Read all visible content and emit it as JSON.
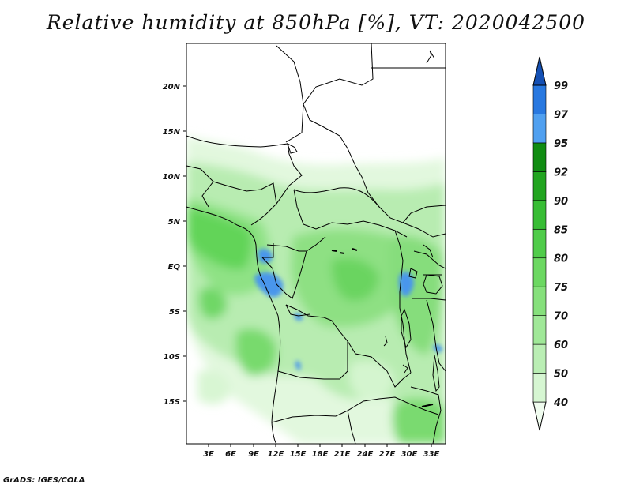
{
  "title": "Relative humidity at 850hPa [%], VT: 2020042500",
  "footer": "GrADS: IGES/COLA",
  "map": {
    "variable": "Relative humidity",
    "level": "850hPa",
    "units": "%",
    "valid_time": "2020042500",
    "lon_labels": [
      "3E",
      "6E",
      "9E",
      "12E",
      "15E",
      "18E",
      "21E",
      "24E",
      "27E",
      "30E",
      "33E"
    ],
    "lat_labels": [
      "20N",
      "15N",
      "10N",
      "5N",
      "EQ",
      "5S",
      "10S",
      "15S"
    ]
  },
  "colorbar": {
    "levels": [
      "40",
      "50",
      "60",
      "70",
      "75",
      "80",
      "85",
      "90",
      "92",
      "95",
      "97",
      "99"
    ],
    "colors": [
      "#f0fcef",
      "#d6f6d2",
      "#baeeb4",
      "#a0e898",
      "#86e07c",
      "#6cd862",
      "#50cc4a",
      "#38bd35",
      "#22a520",
      "#108c12",
      "#50a0f0",
      "#2878e0",
      "#1450b4"
    ]
  }
}
